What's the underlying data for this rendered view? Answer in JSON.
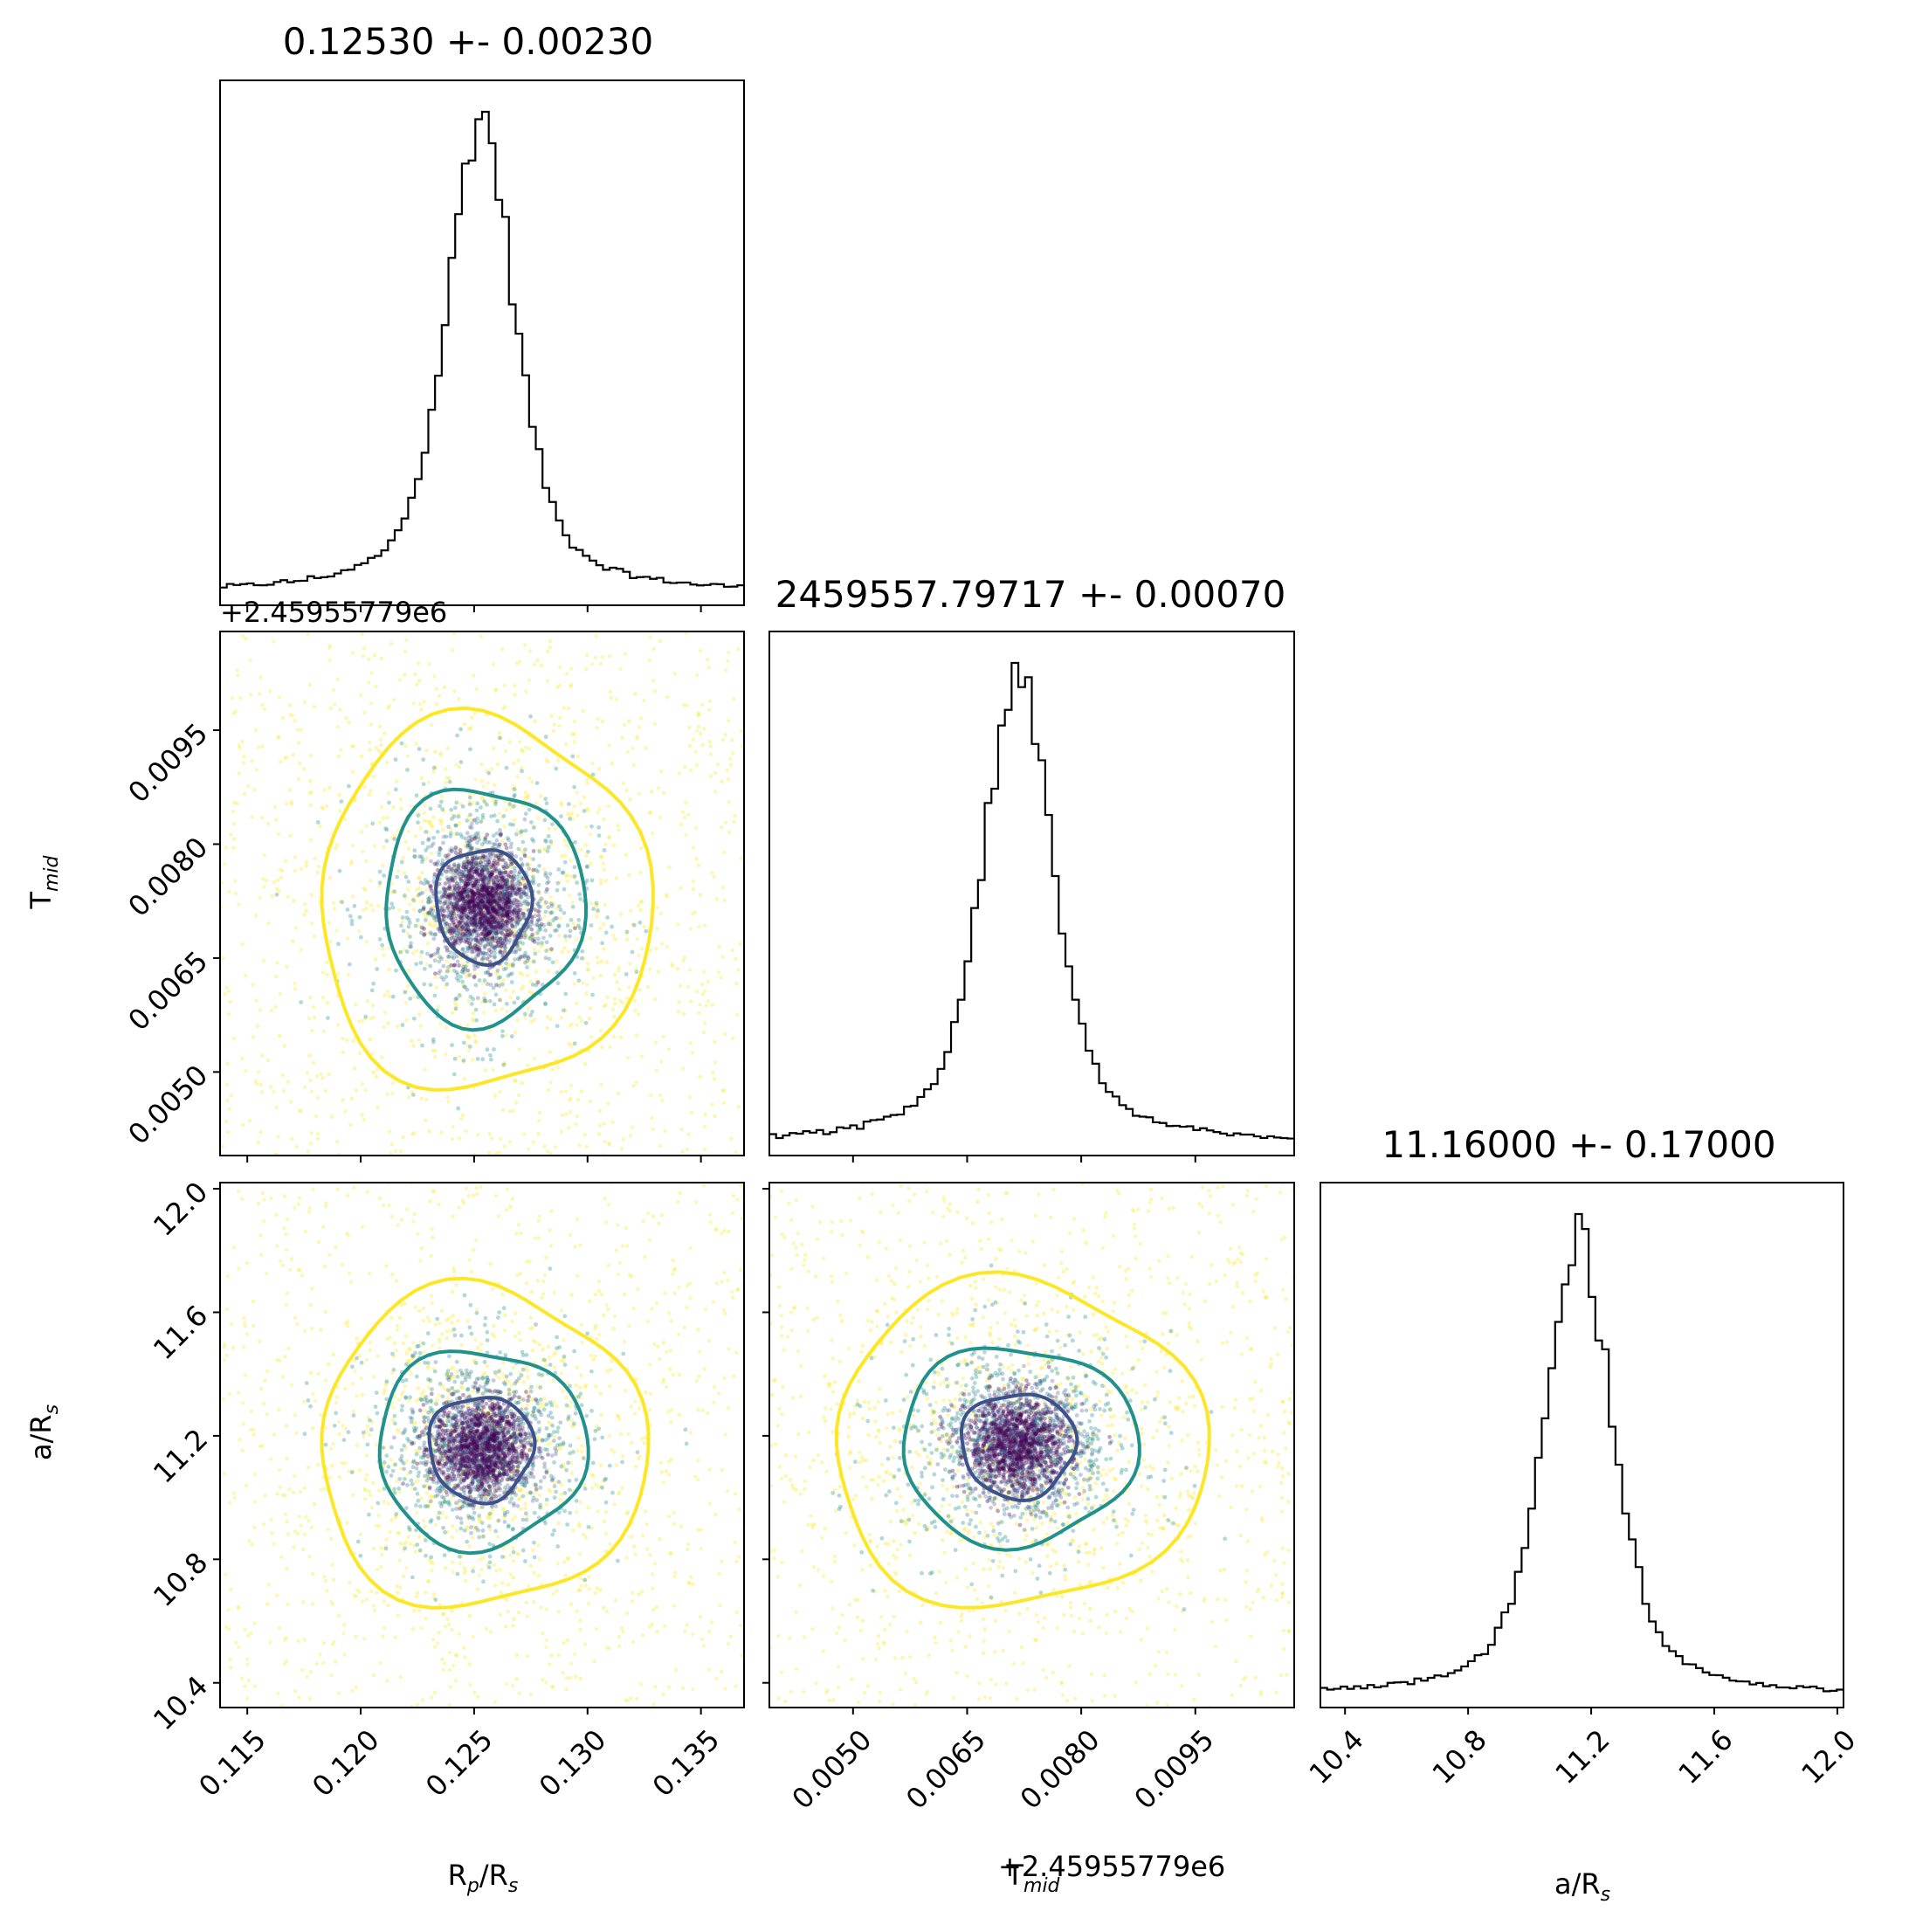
{
  "figure": {
    "type": "corner",
    "colors": {
      "hist": "#000000",
      "inner": "#3b528b",
      "mid": "#21918c",
      "outer": "#fde725",
      "core": "#440154"
    }
  },
  "panels": {
    "rp_hist": {
      "title": "0.12530 +- 0.00230"
    },
    "tmid_hist": {
      "title": "2459557.79717 +- 0.00070"
    },
    "ar_hist": {
      "title": "11.16000 +- 0.17000"
    }
  },
  "labels": {
    "rp": {
      "main": "R",
      "sub": "p",
      "rest": "/R",
      "sub2": "s"
    },
    "tmid": {
      "main": "T",
      "sub": "mid"
    },
    "ar": {
      "main": "a/R",
      "sub": "s"
    },
    "offset": "+2.45955779e6"
  },
  "chart_data": [
    {
      "type": "histogram",
      "parameter": "Rp/Rs",
      "xlim": [
        0.1138,
        0.1369
      ],
      "bins_x": [
        0.1138,
        0.1369
      ],
      "bin_count": 78,
      "center": 0.1253,
      "sigma": 0.0023,
      "peak_x": 0.1257,
      "shape": "sharp peak with broad wings"
    },
    {
      "type": "scatter",
      "x_parameter": "Rp/Rs",
      "y_parameter": "Tmid - 2.45955779e6",
      "xlim": [
        0.1138,
        0.1369
      ],
      "ylim": [
        0.0039,
        0.0108
      ],
      "x_ticks": [
        "0.115",
        "0.120",
        "0.125",
        "0.130",
        "0.135"
      ],
      "y_ticks": [
        "0.0050",
        "0.0065",
        "0.0080",
        "0.0095"
      ],
      "x_tick_values": [
        0.115,
        0.12,
        0.125,
        0.13,
        0.135
      ],
      "y_tick_values": [
        0.005,
        0.0065,
        0.008,
        0.0095
      ],
      "center": [
        0.1254,
        0.0072
      ],
      "contours": [
        {
          "level": "inner",
          "rx": 0.0021,
          "ry": 0.00075
        },
        {
          "level": "mid",
          "rx": 0.0044,
          "ry": 0.00155
        },
        {
          "level": "outer",
          "rx": 0.0073,
          "ry": 0.00245
        }
      ]
    },
    {
      "type": "histogram",
      "parameter": "Tmid - 2.45955779e6",
      "xlim": [
        0.0039,
        0.0108
      ],
      "center": 0.00717,
      "sigma": 0.0007,
      "peak_x": 0.0072,
      "bin_count": 78,
      "x_ticks": [
        "0.0050",
        "0.0065",
        "0.0080",
        "0.0095"
      ],
      "x_tick_values": [
        0.005,
        0.0065,
        0.008,
        0.0095
      ]
    },
    {
      "type": "scatter",
      "x_parameter": "Rp/Rs",
      "y_parameter": "a/Rs",
      "xlim": [
        0.1138,
        0.1369
      ],
      "ylim": [
        10.32,
        12.02
      ],
      "x_ticks": [
        "0.115",
        "0.120",
        "0.125",
        "0.130",
        "0.135"
      ],
      "y_ticks": [
        "10.4",
        "10.8",
        "11.2",
        "11.6",
        "12.0"
      ],
      "x_tick_values": [
        0.115,
        0.12,
        0.125,
        0.13,
        0.135
      ],
      "y_tick_values": [
        10.4,
        10.8,
        11.2,
        11.6,
        12.0
      ],
      "center": [
        0.1253,
        11.16
      ],
      "contours": [
        {
          "level": "inner",
          "rx": 0.0023,
          "ry": 0.17
        },
        {
          "level": "mid",
          "rx": 0.0046,
          "ry": 0.32
        },
        {
          "level": "outer",
          "rx": 0.0072,
          "ry": 0.52
        }
      ]
    },
    {
      "type": "scatter",
      "x_parameter": "Tmid - 2.45955779e6",
      "y_parameter": "a/Rs",
      "xlim": [
        0.0039,
        0.0108
      ],
      "ylim": [
        10.32,
        12.02
      ],
      "x_ticks": [
        "0.0050",
        "0.0065",
        "0.0080",
        "0.0095"
      ],
      "x_tick_values": [
        0.005,
        0.0065,
        0.008,
        0.0095
      ],
      "y_tick_values": [
        10.4,
        10.8,
        11.2,
        11.6,
        12.0
      ],
      "center": [
        0.00717,
        11.17
      ],
      "contours": [
        {
          "level": "inner",
          "rx": 0.00075,
          "ry": 0.17
        },
        {
          "level": "mid",
          "rx": 0.00155,
          "ry": 0.32
        },
        {
          "level": "outer",
          "rx": 0.00245,
          "ry": 0.53
        }
      ]
    },
    {
      "type": "histogram",
      "parameter": "a/Rs",
      "xlim": [
        10.32,
        12.02
      ],
      "center": 11.16,
      "sigma": 0.17,
      "peak_x": 11.17,
      "bin_count": 78,
      "x_ticks": [
        "10.4",
        "10.8",
        "11.2",
        "11.6",
        "12.0"
      ],
      "x_tick_values": [
        10.4,
        10.8,
        11.2,
        11.6,
        12.0
      ]
    }
  ]
}
